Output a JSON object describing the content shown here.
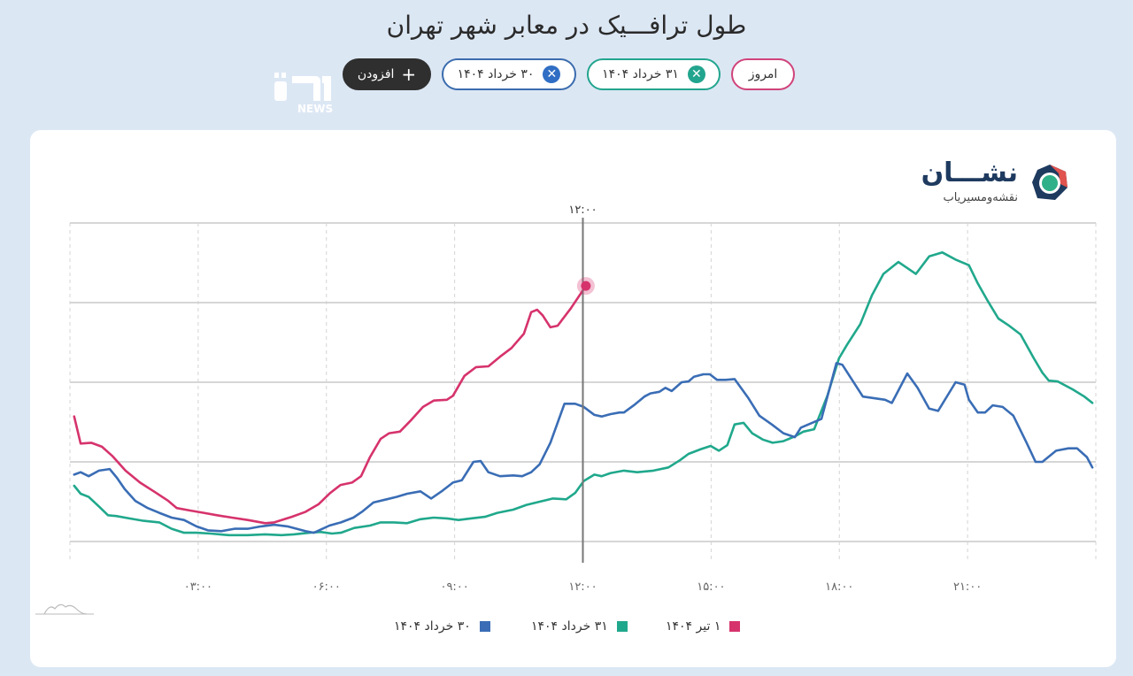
{
  "page": {
    "title": "طول ترافـــیک در معابر شهر تهران"
  },
  "chips": {
    "today": {
      "label": "امروز"
    },
    "khordad31": {
      "label": "۳۱ خرداد ۱۴۰۴",
      "remove_icon": "close-icon"
    },
    "khordad30": {
      "label": "۳۰ خرداد ۱۴۰۴",
      "remove_icon": "close-icon"
    },
    "add": {
      "label": "افزودن",
      "icon": "+"
    }
  },
  "watermark": {
    "logo": "ٮیں",
    "text": "NEWS"
  },
  "brand": {
    "name": "نشـــان",
    "subtitle": "نقشه‌ومسیریاب"
  },
  "hover": {
    "label": "۱۲:۰۰"
  },
  "colors": {
    "tir1": "#d6336c",
    "khordad31": "#20a88c",
    "khordad30": "#3a6db5",
    "grid": "#c8c8c8",
    "background": "#dce7f4"
  },
  "chart_data": {
    "type": "line",
    "title": "طول ترافـــیک در معابر شهر تهران",
    "xlabel": "",
    "ylabel": "",
    "x_unit": "hour of day",
    "xlim": [
      0,
      24
    ],
    "ylim": [
      0,
      400
    ],
    "y_tick_labels_visible": false,
    "grid": {
      "horizontal": true,
      "vertical": "dashed"
    },
    "x_ticks": [
      3,
      6,
      9,
      12,
      15,
      18,
      21
    ],
    "x_tick_labels": [
      "۰۳:۰۰",
      "۰۶:۰۰",
      "۰۹:۰۰",
      "۱۲:۰۰",
      "۱۵:۰۰",
      "۱۸:۰۰",
      "۲۱:۰۰"
    ],
    "hover_x": 12,
    "legend_position": "bottom",
    "series": [
      {
        "key": "tir1",
        "name": "۱ تیر ۱۴۰۴",
        "color": "#d6336c",
        "points": [
          [
            0.1,
            157
          ],
          [
            0.25,
            123
          ],
          [
            0.5,
            124
          ],
          [
            0.75,
            119
          ],
          [
            1.0,
            107
          ],
          [
            1.3,
            89
          ],
          [
            1.64,
            74
          ],
          [
            1.99,
            62
          ],
          [
            2.3,
            51
          ],
          [
            2.5,
            42
          ],
          [
            2.8,
            39
          ],
          [
            3.13,
            36
          ],
          [
            3.44,
            33
          ],
          [
            3.79,
            30
          ],
          [
            4.16,
            27
          ],
          [
            4.57,
            23
          ],
          [
            4.78,
            24
          ],
          [
            5.19,
            31
          ],
          [
            5.5,
            37
          ],
          [
            5.82,
            47
          ],
          [
            6.09,
            61
          ],
          [
            6.33,
            71
          ],
          [
            6.6,
            74
          ],
          [
            6.81,
            82
          ],
          [
            7.02,
            106
          ],
          [
            7.27,
            129
          ],
          [
            7.47,
            136
          ],
          [
            7.72,
            138
          ],
          [
            7.99,
            153
          ],
          [
            8.26,
            169
          ],
          [
            8.51,
            177
          ],
          [
            8.82,
            178
          ],
          [
            8.96,
            183
          ],
          [
            9.23,
            208
          ],
          [
            9.5,
            219
          ],
          [
            9.79,
            220
          ],
          [
            10.06,
            232
          ],
          [
            10.33,
            243
          ],
          [
            10.62,
            261
          ],
          [
            10.79,
            288
          ],
          [
            10.93,
            291
          ],
          [
            11.06,
            284
          ],
          [
            11.24,
            269
          ],
          [
            11.41,
            271
          ],
          [
            11.72,
            293
          ],
          [
            12.07,
            321
          ]
        ],
        "end_marker": true
      },
      {
        "key": "khordad31",
        "name": "۳۱ خرداد ۱۴۰۴",
        "color": "#20a88c",
        "points": [
          [
            0.1,
            70
          ],
          [
            0.25,
            60
          ],
          [
            0.44,
            56
          ],
          [
            0.68,
            44
          ],
          [
            0.89,
            33
          ],
          [
            1.08,
            32
          ],
          [
            1.39,
            29
          ],
          [
            1.72,
            26
          ],
          [
            2.09,
            24
          ],
          [
            2.38,
            16
          ],
          [
            2.67,
            11
          ],
          [
            2.96,
            11
          ],
          [
            3.29,
            10
          ],
          [
            3.71,
            8
          ],
          [
            4.16,
            8
          ],
          [
            4.57,
            9
          ],
          [
            4.95,
            8
          ],
          [
            5.24,
            9
          ],
          [
            5.61,
            11
          ],
          [
            5.86,
            12
          ],
          [
            6.13,
            10
          ],
          [
            6.34,
            11
          ],
          [
            6.65,
            17
          ],
          [
            7.02,
            20
          ],
          [
            7.27,
            24
          ],
          [
            7.58,
            24
          ],
          [
            7.89,
            23
          ],
          [
            8.2,
            28
          ],
          [
            8.51,
            30
          ],
          [
            8.82,
            29
          ],
          [
            9.09,
            27
          ],
          [
            9.38,
            29
          ],
          [
            9.71,
            31
          ],
          [
            10.0,
            36
          ],
          [
            10.37,
            40
          ],
          [
            10.68,
            46
          ],
          [
            10.99,
            50
          ],
          [
            11.3,
            54
          ],
          [
            11.61,
            53
          ],
          [
            11.82,
            61
          ],
          [
            12.02,
            76
          ],
          [
            12.27,
            84
          ],
          [
            12.44,
            82
          ],
          [
            12.65,
            86
          ],
          [
            12.96,
            89
          ],
          [
            13.27,
            87
          ],
          [
            13.65,
            89
          ],
          [
            14.0,
            93
          ],
          [
            14.27,
            102
          ],
          [
            14.47,
            110
          ],
          [
            14.76,
            116
          ],
          [
            14.99,
            120
          ],
          [
            15.18,
            114
          ],
          [
            15.38,
            121
          ],
          [
            15.55,
            147
          ],
          [
            15.76,
            149
          ],
          [
            15.96,
            136
          ],
          [
            16.21,
            128
          ],
          [
            16.44,
            124
          ],
          [
            16.69,
            126
          ],
          [
            16.96,
            132
          ],
          [
            17.16,
            138
          ],
          [
            17.41,
            141
          ],
          [
            17.72,
            183
          ],
          [
            17.99,
            230
          ],
          [
            18.18,
            247
          ],
          [
            18.49,
            273
          ],
          [
            18.76,
            309
          ],
          [
            19.03,
            336
          ],
          [
            19.38,
            351
          ],
          [
            19.79,
            336
          ],
          [
            20.1,
            358
          ],
          [
            20.41,
            363
          ],
          [
            20.72,
            354
          ],
          [
            21.03,
            347
          ],
          [
            21.24,
            324
          ],
          [
            21.45,
            304
          ],
          [
            21.72,
            280
          ],
          [
            21.97,
            271
          ],
          [
            22.24,
            260
          ],
          [
            22.55,
            230
          ],
          [
            22.75,
            212
          ],
          [
            22.9,
            202
          ],
          [
            23.11,
            201
          ],
          [
            23.46,
            191
          ],
          [
            23.73,
            182
          ],
          [
            23.92,
            174
          ]
        ]
      },
      {
        "key": "khordad30",
        "name": "۳۰ خرداد ۱۴۰۴",
        "color": "#3a6db5",
        "points": [
          [
            0.1,
            84
          ],
          [
            0.25,
            87
          ],
          [
            0.44,
            82
          ],
          [
            0.68,
            89
          ],
          [
            0.93,
            91
          ],
          [
            1.1,
            80
          ],
          [
            1.28,
            66
          ],
          [
            1.53,
            51
          ],
          [
            1.82,
            42
          ],
          [
            2.09,
            36
          ],
          [
            2.38,
            30
          ],
          [
            2.67,
            27
          ],
          [
            2.96,
            19
          ],
          [
            3.23,
            14
          ],
          [
            3.54,
            13
          ],
          [
            3.85,
            16
          ],
          [
            4.16,
            16
          ],
          [
            4.47,
            19
          ],
          [
            4.78,
            21
          ],
          [
            5.09,
            19
          ],
          [
            5.51,
            13
          ],
          [
            5.71,
            11
          ],
          [
            6.07,
            20
          ],
          [
            6.34,
            24
          ],
          [
            6.63,
            30
          ],
          [
            6.85,
            38
          ],
          [
            7.1,
            49
          ],
          [
            7.41,
            53
          ],
          [
            7.64,
            56
          ],
          [
            7.89,
            60
          ],
          [
            8.2,
            63
          ],
          [
            8.45,
            54
          ],
          [
            8.72,
            64
          ],
          [
            8.96,
            74
          ],
          [
            9.17,
            77
          ],
          [
            9.44,
            100
          ],
          [
            9.61,
            101
          ],
          [
            9.79,
            87
          ],
          [
            10.06,
            82
          ],
          [
            10.37,
            83
          ],
          [
            10.58,
            82
          ],
          [
            10.79,
            87
          ],
          [
            10.99,
            97
          ],
          [
            11.24,
            124
          ],
          [
            11.57,
            173
          ],
          [
            11.82,
            173
          ],
          [
            12.02,
            169
          ],
          [
            12.27,
            159
          ],
          [
            12.44,
            157
          ],
          [
            12.65,
            160
          ],
          [
            12.86,
            162
          ],
          [
            12.96,
            162
          ],
          [
            13.19,
            171
          ],
          [
            13.44,
            182
          ],
          [
            13.58,
            186
          ],
          [
            13.79,
            188
          ],
          [
            13.93,
            193
          ],
          [
            14.08,
            189
          ],
          [
            14.31,
            200
          ],
          [
            14.47,
            201
          ],
          [
            14.6,
            207
          ],
          [
            14.82,
            210
          ],
          [
            14.97,
            210
          ],
          [
            15.14,
            203
          ],
          [
            15.34,
            203
          ],
          [
            15.55,
            204
          ],
          [
            15.86,
            181
          ],
          [
            16.13,
            158
          ],
          [
            16.42,
            147
          ],
          [
            16.69,
            136
          ],
          [
            16.96,
            131
          ],
          [
            17.1,
            143
          ],
          [
            17.58,
            154
          ],
          [
            17.93,
            224
          ],
          [
            18.07,
            222
          ],
          [
            18.55,
            182
          ],
          [
            19.07,
            178
          ],
          [
            19.23,
            174
          ],
          [
            19.59,
            211
          ],
          [
            19.83,
            193
          ],
          [
            20.1,
            167
          ],
          [
            20.31,
            164
          ],
          [
            20.72,
            200
          ],
          [
            20.93,
            197
          ],
          [
            21.03,
            178
          ],
          [
            21.24,
            162
          ],
          [
            21.41,
            162
          ],
          [
            21.59,
            171
          ],
          [
            21.82,
            169
          ],
          [
            22.07,
            158
          ],
          [
            22.38,
            124
          ],
          [
            22.59,
            100
          ],
          [
            22.75,
            100
          ],
          [
            23.07,
            114
          ],
          [
            23.36,
            117
          ],
          [
            23.56,
            117
          ],
          [
            23.79,
            106
          ],
          [
            23.92,
            93
          ]
        ]
      }
    ]
  },
  "legend": [
    {
      "key": "tir1",
      "label": "۱ تیر ۱۴۰۴",
      "color": "#d6336c"
    },
    {
      "key": "khordad31",
      "label": "۳۱ خرداد ۱۴۰۴",
      "color": "#20a88c"
    },
    {
      "key": "khordad30",
      "label": "۳۰ خرداد ۱۴۰۴",
      "color": "#3a6db5"
    }
  ]
}
